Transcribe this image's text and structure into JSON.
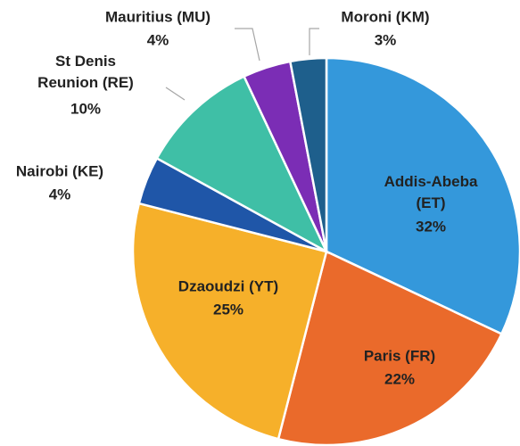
{
  "chart_data": {
    "type": "pie",
    "categories": [
      "Addis-Abeba (ET)",
      "Paris (FR)",
      "Dzaoudzi (YT)",
      "Nairobi (KE)",
      "St Denis Reunion (RE)",
      "Mauritius (MU)",
      "Moroni (KM)"
    ],
    "values": [
      32,
      22,
      25,
      4,
      10,
      4,
      3
    ],
    "value_labels": [
      "32%",
      "22%",
      "25%",
      "4%",
      "10%",
      "4%",
      "3%"
    ],
    "colors": [
      "#3498db",
      "#ea6a2b",
      "#f6b02a",
      "#1f56a8",
      "#3fbfa6",
      "#7b2db5",
      "#1e5f8c"
    ]
  }
}
